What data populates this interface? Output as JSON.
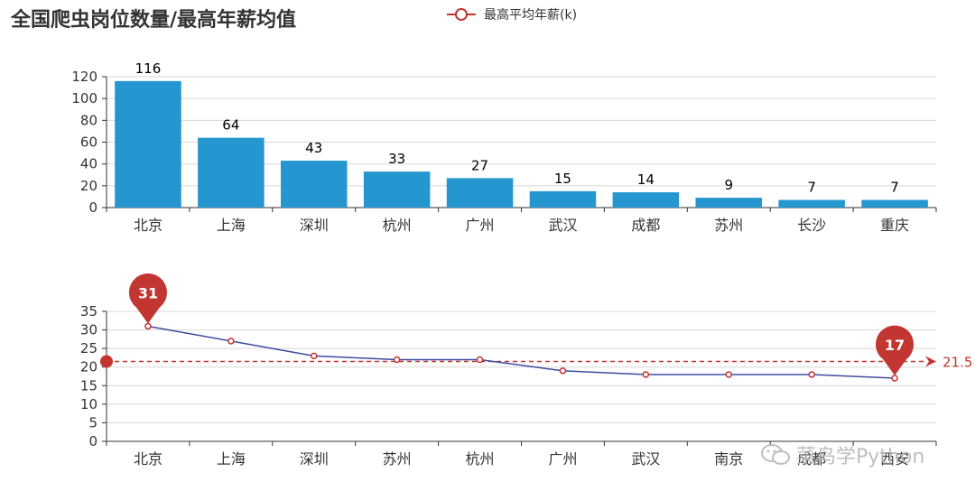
{
  "title": "全国爬虫岗位数量/最高年薪均值",
  "legend": {
    "series_name": "最高平均年薪(k)"
  },
  "watermark": "菜鸟学Python",
  "colors": {
    "bar": "#2596cf",
    "line": "#3d4ba0",
    "marker": "#c23531",
    "grid": "#d8d8d8",
    "axis": "#333333"
  },
  "chart_data": [
    {
      "type": "bar",
      "categories": [
        "北京",
        "上海",
        "深圳",
        "杭州",
        "广州",
        "武汉",
        "成都",
        "苏州",
        "长沙",
        "重庆"
      ],
      "values": [
        116,
        64,
        43,
        33,
        27,
        15,
        14,
        9,
        7,
        7
      ],
      "ylim": [
        0,
        120
      ],
      "yticks": [
        0,
        20,
        40,
        60,
        80,
        100,
        120
      ],
      "data_labels": true,
      "grid": true
    },
    {
      "type": "line",
      "categories": [
        "北京",
        "上海",
        "深圳",
        "苏州",
        "杭州",
        "广州",
        "武汉",
        "南京",
        "成都",
        "西安"
      ],
      "series": [
        {
          "name": "最高平均年薪(k)",
          "values": [
            31,
            27,
            23,
            22,
            22,
            19,
            18,
            18,
            18,
            17
          ]
        }
      ],
      "ylim": [
        0,
        35
      ],
      "yticks": [
        0,
        5,
        10,
        15,
        20,
        25,
        30,
        35
      ],
      "mark_points": [
        {
          "label": "31",
          "value": 31,
          "index": 0
        },
        {
          "label": "17",
          "value": 17,
          "index": 9
        }
      ],
      "mark_line": {
        "label": "21.5",
        "value": 21.5
      },
      "grid": true
    }
  ]
}
